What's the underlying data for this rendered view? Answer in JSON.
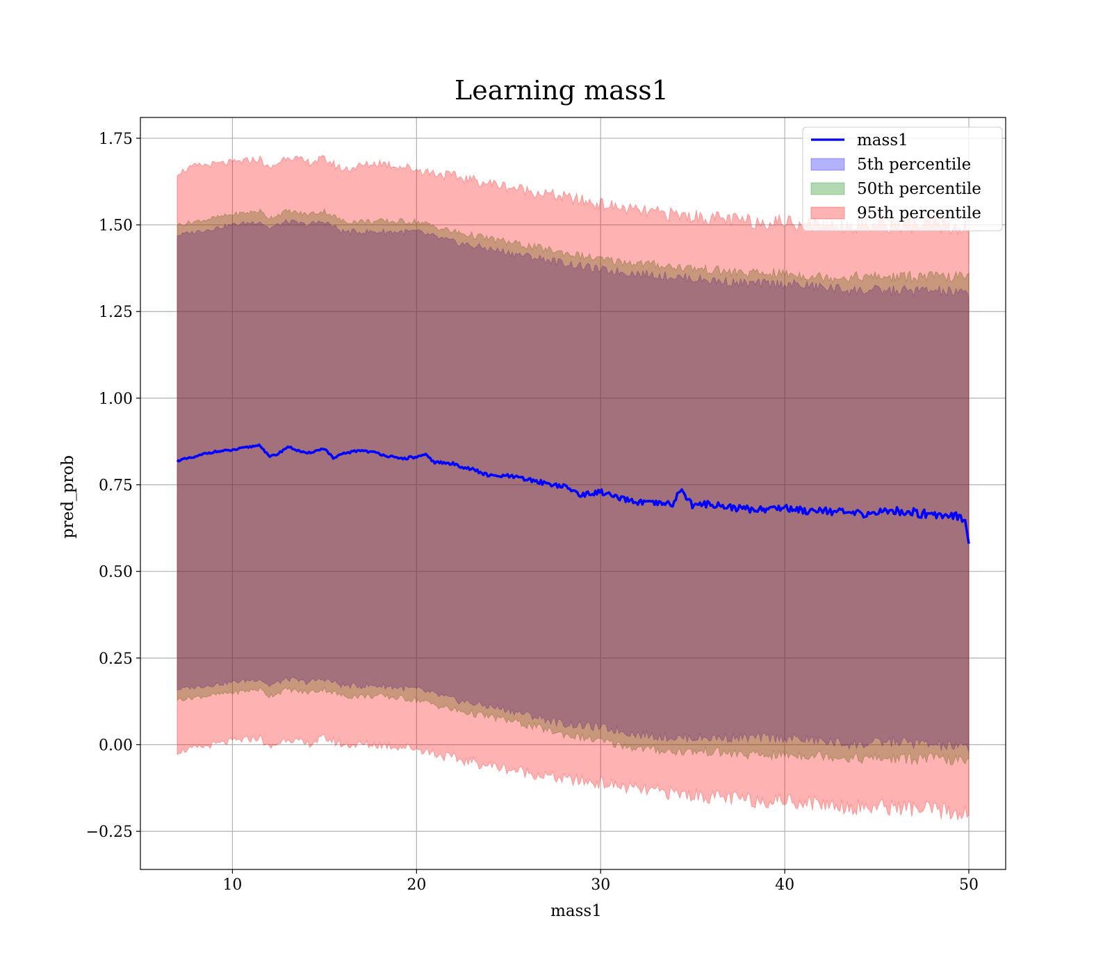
{
  "chart_data": {
    "type": "area",
    "title": "Learning mass1",
    "xlabel": "mass1",
    "ylabel": "pred_prob",
    "xlim": [
      5,
      52
    ],
    "ylim": [
      -0.36,
      1.81
    ],
    "x_ticks": [
      10,
      20,
      30,
      40,
      50
    ],
    "x_tick_labels": [
      "10",
      "20",
      "30",
      "40",
      "50"
    ],
    "y_ticks": [
      -0.25,
      0.0,
      0.25,
      0.5,
      0.75,
      1.0,
      1.25,
      1.5,
      1.75
    ],
    "y_tick_labels": [
      "−0.25",
      "0.00",
      "0.25",
      "0.50",
      "0.75",
      "1.00",
      "1.25",
      "1.50",
      "1.75"
    ],
    "grid": true,
    "legend_position": "top-right",
    "series": [
      {
        "name": "mass1",
        "kind": "line",
        "color": "#0000ff",
        "x": [
          7,
          8,
          8.5,
          9,
          10,
          10.5,
          11,
          11.5,
          12,
          12.5,
          13,
          13.5,
          14,
          15,
          15.5,
          16,
          17,
          18,
          19,
          20,
          20.5,
          21,
          22,
          23,
          24,
          25,
          26,
          27,
          28,
          29,
          30,
          31,
          32,
          33,
          34,
          34.3,
          35,
          36,
          37,
          38,
          39,
          40,
          41,
          42,
          43,
          44,
          45,
          46,
          47,
          48,
          49,
          49.8,
          50
        ],
        "y": [
          0.82,
          0.83,
          0.84,
          0.845,
          0.85,
          0.855,
          0.86,
          0.865,
          0.83,
          0.84,
          0.86,
          0.85,
          0.84,
          0.855,
          0.825,
          0.84,
          0.85,
          0.84,
          0.825,
          0.83,
          0.835,
          0.815,
          0.81,
          0.795,
          0.775,
          0.775,
          0.765,
          0.755,
          0.745,
          0.72,
          0.73,
          0.71,
          0.7,
          0.695,
          0.695,
          0.74,
          0.69,
          0.695,
          0.685,
          0.68,
          0.68,
          0.685,
          0.675,
          0.68,
          0.67,
          0.665,
          0.67,
          0.675,
          0.67,
          0.665,
          0.665,
          0.655,
          0.58
        ]
      },
      {
        "name": "5th percentile",
        "kind": "band",
        "color": "#0000ff",
        "opacity": 0.3,
        "x": [
          7,
          10,
          11.5,
          12,
          13,
          14,
          15,
          16,
          18,
          20,
          22,
          25,
          28,
          30,
          32,
          34,
          36,
          38,
          40,
          42,
          44,
          46,
          48,
          50
        ],
        "lower": [
          0.16,
          0.18,
          0.19,
          0.17,
          0.19,
          0.18,
          0.19,
          0.17,
          0.17,
          0.16,
          0.13,
          0.1,
          0.06,
          0.05,
          0.03,
          0.02,
          0.02,
          0.02,
          0.02,
          0.01,
          0.0,
          0.01,
          0.0,
          -0.01
        ],
        "upper": [
          1.47,
          1.5,
          1.51,
          1.49,
          1.51,
          1.5,
          1.51,
          1.48,
          1.48,
          1.48,
          1.45,
          1.42,
          1.39,
          1.37,
          1.36,
          1.35,
          1.34,
          1.33,
          1.33,
          1.32,
          1.31,
          1.31,
          1.31,
          1.3
        ]
      },
      {
        "name": "50th percentile",
        "kind": "band",
        "color": "#008000",
        "opacity": 0.3,
        "x": [
          7,
          10,
          11.5,
          12,
          13,
          14,
          15,
          16,
          18,
          20,
          22,
          25,
          28,
          30,
          32,
          34,
          36,
          38,
          40,
          42,
          44,
          46,
          48,
          50
        ],
        "lower": [
          0.13,
          0.15,
          0.16,
          0.14,
          0.16,
          0.15,
          0.16,
          0.14,
          0.14,
          0.13,
          0.1,
          0.07,
          0.03,
          0.01,
          -0.01,
          -0.02,
          -0.02,
          -0.03,
          -0.03,
          -0.03,
          -0.04,
          -0.04,
          -0.04,
          -0.05
        ],
        "upper": [
          1.5,
          1.53,
          1.54,
          1.52,
          1.54,
          1.53,
          1.54,
          1.51,
          1.51,
          1.51,
          1.48,
          1.45,
          1.42,
          1.4,
          1.39,
          1.38,
          1.37,
          1.36,
          1.36,
          1.35,
          1.35,
          1.35,
          1.35,
          1.35
        ]
      },
      {
        "name": "95th percentile",
        "kind": "band",
        "color": "#ff0000",
        "opacity": 0.3,
        "x": [
          7,
          8,
          10,
          11.5,
          12,
          13,
          14,
          15,
          16,
          18,
          20,
          22,
          25,
          28,
          30,
          32,
          34,
          36,
          38,
          40,
          42,
          44,
          46,
          48,
          50
        ],
        "lower": [
          -0.02,
          -0.01,
          0.01,
          0.02,
          -0.01,
          0.02,
          0.0,
          0.02,
          0.0,
          0.0,
          -0.01,
          -0.04,
          -0.07,
          -0.1,
          -0.11,
          -0.13,
          -0.14,
          -0.15,
          -0.16,
          -0.16,
          -0.17,
          -0.18,
          -0.18,
          -0.19,
          -0.2
        ],
        "upper": [
          1.65,
          1.67,
          1.68,
          1.69,
          1.66,
          1.7,
          1.68,
          1.69,
          1.66,
          1.68,
          1.66,
          1.64,
          1.61,
          1.58,
          1.56,
          1.54,
          1.53,
          1.52,
          1.51,
          1.51,
          1.5,
          1.5,
          1.5,
          1.5,
          1.49
        ]
      }
    ]
  }
}
